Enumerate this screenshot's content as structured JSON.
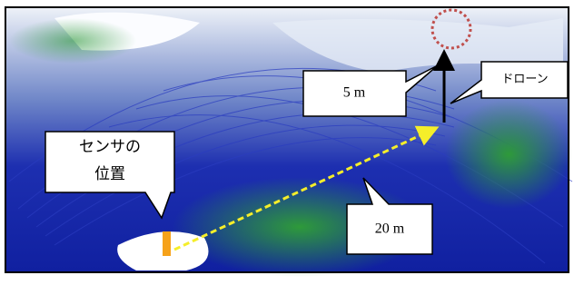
{
  "callouts": {
    "sensor": [
      "センサの",
      "位置"
    ],
    "height": "5 m",
    "drone": "ドローン",
    "distance": "20 m"
  }
}
